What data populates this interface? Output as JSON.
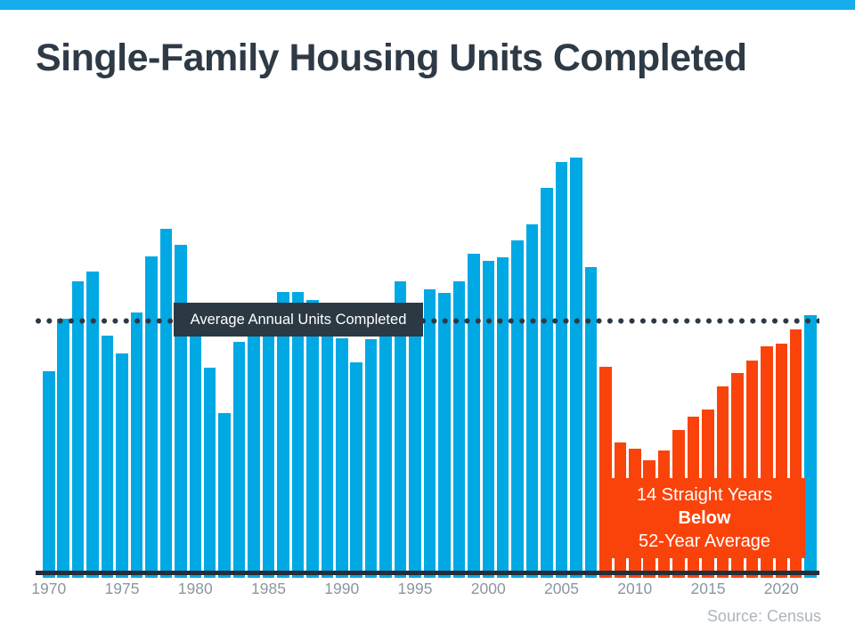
{
  "header": {
    "title": "Single-Family Housing Units Completed"
  },
  "average_line_label": "Average Annual Units Completed",
  "annotation": {
    "line1": "14 Straight Years",
    "line2": "Below",
    "line3": "52-Year Average"
  },
  "footer": {
    "source": "Source: Census"
  },
  "colors": {
    "stripe_blue": "#17ADEA",
    "bar_blue": "#00A9E4",
    "bar_orange": "#FA430B",
    "dark_slate": "#2C3945",
    "axis_line": "#232E39",
    "tick_label_gray": "#8A96A2",
    "source_gray": "#AEB5BE",
    "title_color": "#2E3A46"
  },
  "chart_data": {
    "type": "bar",
    "title": "Single-Family Housing Units Completed",
    "unit": "thousands of single-family housing units completed per year (estimated from bar heights)",
    "years": [
      1970,
      1971,
      1972,
      1973,
      1974,
      1975,
      1976,
      1977,
      1978,
      1979,
      1980,
      1981,
      1982,
      1983,
      1984,
      1985,
      1986,
      1987,
      1988,
      1989,
      1990,
      1991,
      1992,
      1993,
      1994,
      1995,
      1996,
      1997,
      1998,
      1999,
      2000,
      2001,
      2002,
      2003,
      2004,
      2005,
      2006,
      2007,
      2008,
      2009,
      2010,
      2011,
      2012,
      2013,
      2014,
      2015,
      2016,
      2017,
      2018,
      2019,
      2020,
      2021,
      2022
    ],
    "values": [
      847,
      1067,
      1223,
      1263,
      996,
      922,
      1093,
      1327,
      1442,
      1375,
      1000,
      862,
      673,
      970,
      1010,
      1130,
      1178,
      1178,
      1145,
      1000,
      985,
      884,
      981,
      1040,
      1223,
      1075,
      1189,
      1174,
      1223,
      1338,
      1308,
      1323,
      1394,
      1460,
      1613,
      1720,
      1739,
      1282,
      866,
      550,
      524,
      476,
      517,
      602,
      658,
      687,
      784,
      840,
      892,
      951,
      962,
      1022,
      1081
    ],
    "bar_color_default": "#00A9E4",
    "below_average_color": "#FA430B",
    "below_average_years": {
      "from": 2008,
      "to": 2021
    },
    "average_line": {
      "label": "Average Annual Units Completed",
      "value": 1059,
      "style": "dotted"
    },
    "annotation_text": "14 Straight Years Below 52-Year Average",
    "x_ticks": [
      "1970",
      "1975",
      "1980",
      "1985",
      "1990",
      "1995",
      "2000",
      "2005",
      "2010",
      "2015",
      "2020"
    ],
    "ylim": [
      0,
      1870
    ],
    "grid": false,
    "legend": "none",
    "source": "Source: Census"
  }
}
